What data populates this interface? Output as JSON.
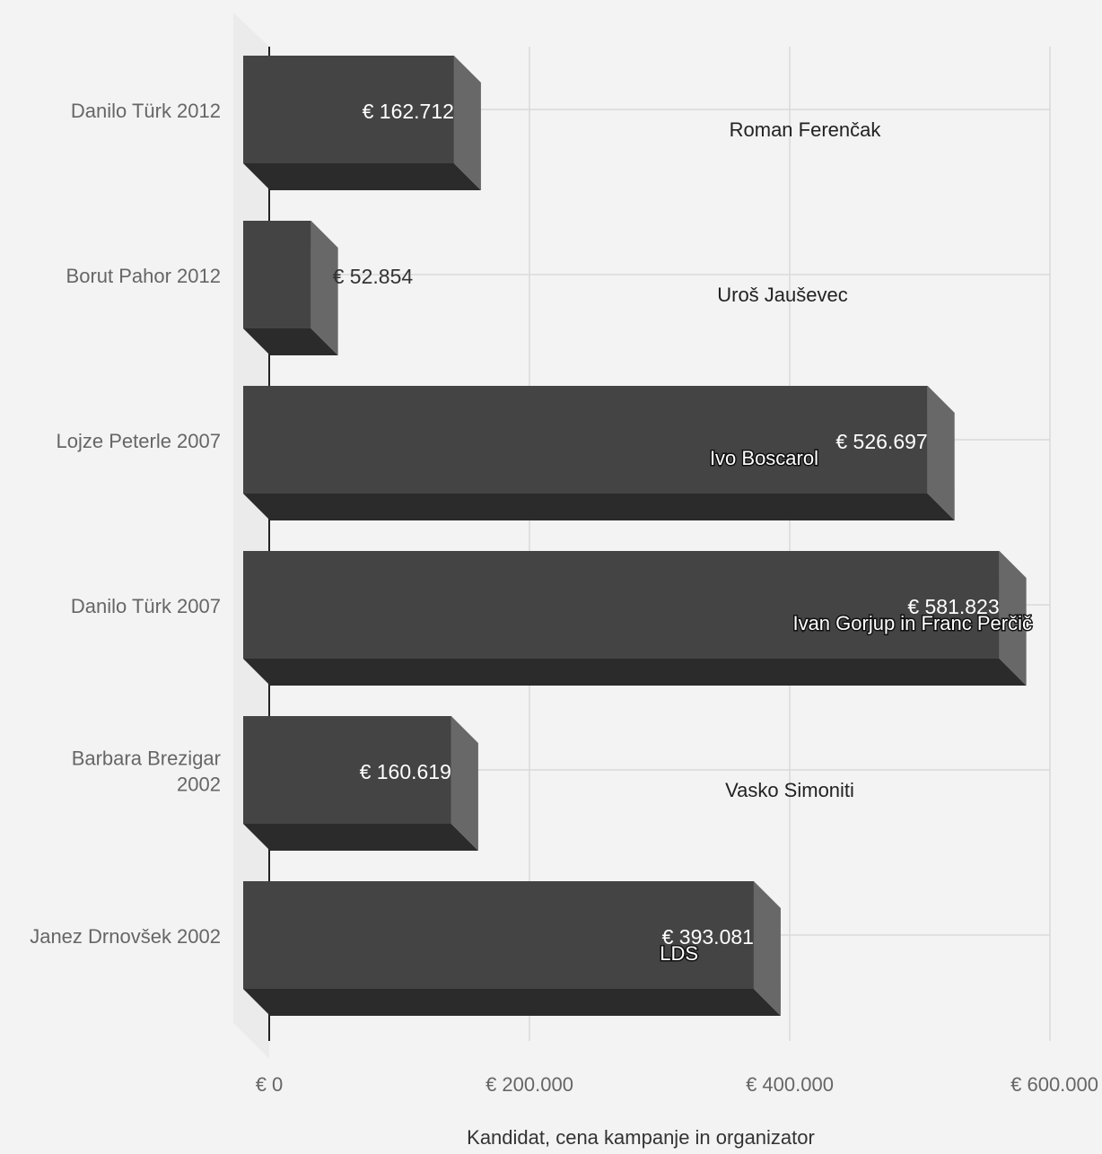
{
  "chart_data": {
    "type": "bar",
    "orientation": "horizontal",
    "style": "3d",
    "categories": [
      [
        "Danilo Türk 2012"
      ],
      [
        "Borut Pahor 2012"
      ],
      [
        "Lojze Peterle 2007"
      ],
      [
        "Danilo Türk 2007"
      ],
      [
        "Barbara Brezigar",
        "2002"
      ],
      [
        "Janez Drnovšek 2002"
      ]
    ],
    "values": [
      162712,
      52854,
      526697,
      581823,
      160619,
      393081
    ],
    "value_labels": [
      "€ 162.712",
      "€ 52.854",
      "€ 526.697",
      "€ 581.823",
      "€ 160.619",
      "€ 393.081"
    ],
    "organizers": [
      "Roman Ferenčak",
      "Uroš Jauševec",
      "Ivo Boscarol",
      "Ivan Gorjup in Franc Perčič",
      "Vasko Simoniti",
      "LDS"
    ],
    "xlim": [
      0,
      600000
    ],
    "xticks": [
      0,
      200000,
      400000,
      600000
    ],
    "xtick_labels": [
      "€ 0",
      "€ 200.000",
      "€ 400.000",
      "€ 600.000"
    ],
    "xlabel": "Kandidat, cena kampanje in organizator",
    "grid": true,
    "colors": {
      "background": "#f3f3f3",
      "bar_front": "#444444",
      "bar_bottom": "#2b2b2b",
      "bar_side": "#686868",
      "gridline": "#d9d9d9",
      "axis": "#222222",
      "floor_wall": "#ebebeb"
    }
  }
}
